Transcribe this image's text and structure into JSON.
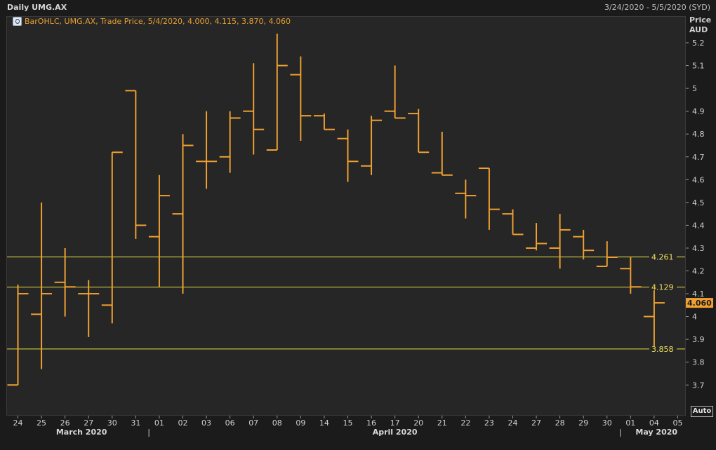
{
  "header": {
    "title": "Daily UMG.AX",
    "date_range": "3/24/2020 - 5/5/2020 (SYD)"
  },
  "legend": {
    "text": "BarOHLC, UMG.AX, Trade Price,  5/4/2020, 4.000, 4.115, 3.870, 4.060"
  },
  "axis": {
    "y_title_line1": "Price",
    "y_title_line2": "AUD",
    "auto_label": "Auto"
  },
  "colors": {
    "bar": "#f0a030",
    "hline": "#e8e040",
    "last_price_bg": "#f0a030",
    "plot_bg": "#262626",
    "page_bg": "#1b1b1b"
  },
  "chart_data": {
    "type": "bar",
    "series_kind": "OHLC",
    "ylim": [
      3.6,
      5.3
    ],
    "y_ticks": [
      {
        "v": 3.7,
        "t": "3.7"
      },
      {
        "v": 3.8,
        "t": "3.8"
      },
      {
        "v": 3.9,
        "t": "3.9"
      },
      {
        "v": 4.0,
        "t": "4"
      },
      {
        "v": 4.1,
        "t": "4.1"
      },
      {
        "v": 4.2,
        "t": "4.2"
      },
      {
        "v": 4.3,
        "t": "4.3"
      },
      {
        "v": 4.4,
        "t": "4.4"
      },
      {
        "v": 4.5,
        "t": "4.5"
      },
      {
        "v": 4.6,
        "t": "4.6"
      },
      {
        "v": 4.7,
        "t": "4.7"
      },
      {
        "v": 4.8,
        "t": "4.8"
      },
      {
        "v": 4.9,
        "t": "4.9"
      },
      {
        "v": 5.0,
        "t": "5"
      },
      {
        "v": 5.1,
        "t": "5.1"
      },
      {
        "v": 5.2,
        "t": "5.2"
      }
    ],
    "x_labels": [
      "24",
      "25",
      "26",
      "27",
      "30",
      "31",
      "01",
      "02",
      "03",
      "06",
      "07",
      "08",
      "09",
      "14",
      "15",
      "16",
      "17",
      "20",
      "21",
      "22",
      "23",
      "24",
      "27",
      "28",
      "29",
      "30",
      "01",
      "04",
      "05"
    ],
    "months": [
      {
        "label": "March 2020",
        "at_index": 2.7
      },
      {
        "label": "April 2020",
        "at_index": 16.0
      },
      {
        "label": "May 2020",
        "at_index": 27.1
      }
    ],
    "month_separators": [
      6,
      26
    ],
    "bars": [
      {
        "o": 3.7,
        "h": 4.14,
        "l": 3.7,
        "c": 4.1
      },
      {
        "o": 4.01,
        "h": 4.5,
        "l": 3.77,
        "c": 4.1
      },
      {
        "o": 4.15,
        "h": 4.3,
        "l": 4.0,
        "c": 4.13
      },
      {
        "o": 4.1,
        "h": 4.16,
        "l": 3.91,
        "c": 4.1
      },
      {
        "o": 4.05,
        "h": 4.72,
        "l": 3.97,
        "c": 4.72
      },
      {
        "o": 4.99,
        "h": 4.99,
        "l": 4.34,
        "c": 4.4
      },
      {
        "o": 4.35,
        "h": 4.62,
        "l": 4.13,
        "c": 4.53
      },
      {
        "o": 4.45,
        "h": 4.8,
        "l": 4.1,
        "c": 4.75
      },
      {
        "o": 4.68,
        "h": 4.9,
        "l": 4.56,
        "c": 4.68
      },
      {
        "o": 4.7,
        "h": 4.9,
        "l": 4.63,
        "c": 4.87
      },
      {
        "o": 4.9,
        "h": 5.11,
        "l": 4.71,
        "c": 4.82
      },
      {
        "o": 4.73,
        "h": 5.24,
        "l": 4.73,
        "c": 5.1
      },
      {
        "o": 5.06,
        "h": 5.14,
        "l": 4.77,
        "c": 4.88
      },
      {
        "o": 4.88,
        "h": 4.89,
        "l": 4.82,
        "c": 4.82
      },
      {
        "o": 4.78,
        "h": 4.82,
        "l": 4.59,
        "c": 4.68
      },
      {
        "o": 4.66,
        "h": 4.88,
        "l": 4.62,
        "c": 4.86
      },
      {
        "o": 4.9,
        "h": 5.1,
        "l": 4.87,
        "c": 4.87
      },
      {
        "o": 4.89,
        "h": 4.91,
        "l": 4.72,
        "c": 4.72
      },
      {
        "o": 4.63,
        "h": 4.81,
        "l": 4.62,
        "c": 4.62
      },
      {
        "o": 4.54,
        "h": 4.6,
        "l": 4.43,
        "c": 4.53
      },
      {
        "o": 4.65,
        "h": 4.65,
        "l": 4.38,
        "c": 4.47
      },
      {
        "o": 4.45,
        "h": 4.47,
        "l": 4.36,
        "c": 4.36
      },
      {
        "o": 4.3,
        "h": 4.41,
        "l": 4.29,
        "c": 4.32
      },
      {
        "o": 4.3,
        "h": 4.45,
        "l": 4.21,
        "c": 4.38
      },
      {
        "o": 4.35,
        "h": 4.38,
        "l": 4.25,
        "c": 4.29
      },
      {
        "o": 4.22,
        "h": 4.33,
        "l": 4.22,
        "c": 4.26
      },
      {
        "o": 4.21,
        "h": 4.26,
        "l": 4.1,
        "c": 4.13
      },
      {
        "o": 4.0,
        "h": 4.115,
        "l": 3.87,
        "c": 4.06
      }
    ],
    "horizontal_lines": [
      {
        "value": 4.261,
        "label": "4.261"
      },
      {
        "value": 4.129,
        "label": "4.129"
      },
      {
        "value": 3.858,
        "label": "3.858"
      }
    ],
    "last_price": {
      "value": 4.06,
      "label": "4.060"
    }
  }
}
